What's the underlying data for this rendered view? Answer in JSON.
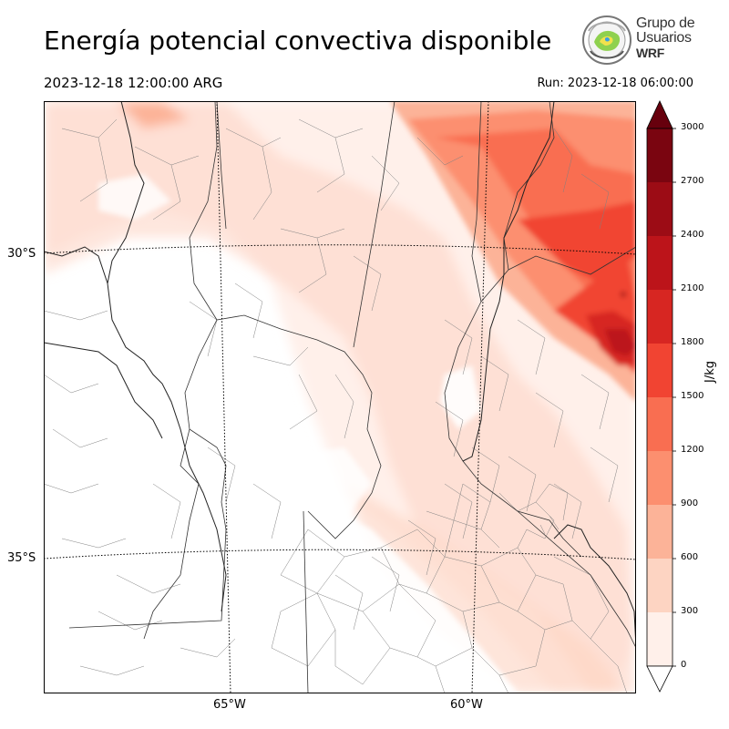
{
  "header": {
    "title": "Energía potencial convectiva disponible",
    "valid_time": "2023-12-18 12:00:00 ARG",
    "run_time": "Run: 2023-12-18 06:00:00"
  },
  "logo": {
    "line1": "Grupo de",
    "line2": "Usuarios",
    "line3": "WRF"
  },
  "map": {
    "lat_labels": [
      "30°S",
      "35°S"
    ],
    "lon_labels": [
      "65°W",
      "60°W"
    ],
    "field_colors": {
      "max_region": "#67000d",
      "background": "#ffffff"
    }
  },
  "colorbar": {
    "unit": "J/kg",
    "ticks": [
      "0",
      "300",
      "600",
      "900",
      "1200",
      "1500",
      "1800",
      "2100",
      "2400",
      "2700",
      "3000"
    ],
    "colors": [
      "#fff0ea",
      "#fdd4c2",
      "#fcb398",
      "#fc8f6f",
      "#f96e51",
      "#f14432",
      "#d72622",
      "#bc141a",
      "#9c0c15",
      "#7a0510"
    ],
    "extend_high_color": "#67000d",
    "extend_low_color": "#ffffff"
  }
}
